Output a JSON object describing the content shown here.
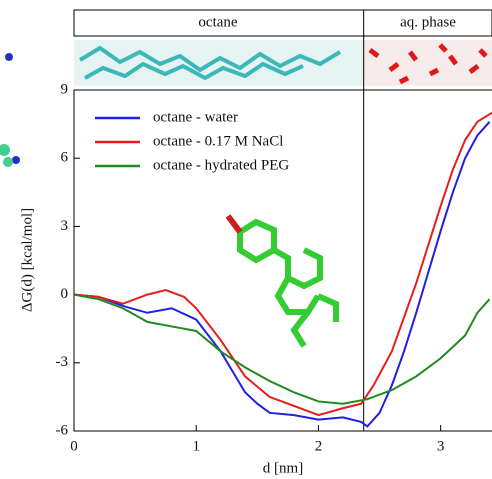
{
  "chart_data": {
    "type": "line",
    "xlabel": "d [nm]",
    "ylabel": "ΔG(d) [kcal/mol]",
    "regions": [
      "octane",
      "aq. phase"
    ],
    "interface": 2.37,
    "xlim": [
      0,
      3.42
    ],
    "ylim": [
      -6,
      9
    ],
    "xticks": [
      0,
      1,
      2,
      3
    ],
    "yticks": [
      -6,
      -3,
      0,
      3,
      6,
      9
    ],
    "legend": "upper left",
    "series": [
      {
        "name": "octane - water",
        "color": "#1f1fe6",
        "x": [
          0,
          0.2,
          0.4,
          0.6,
          0.8,
          1.0,
          1.2,
          1.4,
          1.5,
          1.6,
          1.8,
          2.0,
          2.2,
          2.35,
          2.4,
          2.5,
          2.6,
          2.7,
          2.8,
          2.9,
          3.0,
          3.1,
          3.2,
          3.3,
          3.4
        ],
        "values": [
          0,
          -0.1,
          -0.5,
          -0.8,
          -0.6,
          -1.1,
          -2.5,
          -4.3,
          -4.8,
          -5.2,
          -5.3,
          -5.5,
          -5.4,
          -5.6,
          -5.8,
          -5.2,
          -4.0,
          -2.5,
          -0.8,
          1.0,
          2.8,
          4.5,
          6.0,
          7.0,
          7.6
        ]
      },
      {
        "name": "octane - 0.17 M NaCl",
        "color": "#e81c1c",
        "x": [
          0,
          0.2,
          0.4,
          0.6,
          0.75,
          0.9,
          1.0,
          1.2,
          1.4,
          1.6,
          1.8,
          2.0,
          2.2,
          2.35,
          2.45,
          2.6,
          2.7,
          2.8,
          2.9,
          3.0,
          3.1,
          3.2,
          3.3,
          3.42
        ],
        "values": [
          0,
          -0.1,
          -0.4,
          0.0,
          0.2,
          -0.1,
          -0.6,
          -2.0,
          -3.6,
          -4.5,
          -4.9,
          -5.3,
          -5.0,
          -4.8,
          -4.0,
          -2.5,
          -1.0,
          0.5,
          2.2,
          3.9,
          5.5,
          6.8,
          7.6,
          8.0
        ]
      },
      {
        "name": "octane - hydrated PEG",
        "color": "#1f8a1f",
        "x": [
          0,
          0.2,
          0.4,
          0.6,
          0.8,
          1.0,
          1.2,
          1.4,
          1.6,
          1.8,
          2.0,
          2.2,
          2.4,
          2.6,
          2.8,
          3.0,
          3.2,
          3.3,
          3.4
        ],
        "values": [
          0,
          -0.2,
          -0.6,
          -1.2,
          -1.4,
          -1.6,
          -2.5,
          -3.2,
          -3.8,
          -4.3,
          -4.7,
          -4.8,
          -4.6,
          -4.2,
          -3.6,
          -2.8,
          -1.8,
          -0.8,
          -0.2
        ]
      }
    ]
  }
}
